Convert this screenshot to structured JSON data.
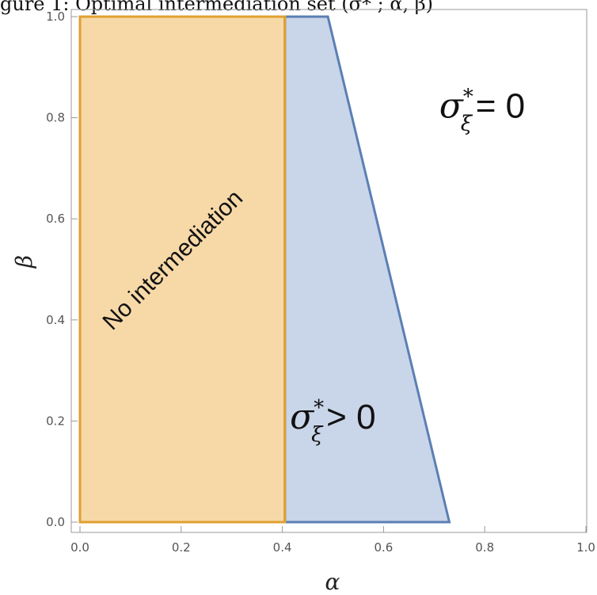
{
  "caption": "gure 1: Optimal intermediation set (σ* ; α, β)",
  "chart_data": {
    "type": "area",
    "xlabel": "α",
    "ylabel": "β",
    "xlim": [
      0,
      1
    ],
    "ylim": [
      0,
      1
    ],
    "x_ticks": [
      "0.0",
      "0.2",
      "0.4",
      "0.6",
      "0.8",
      "1.0"
    ],
    "y_ticks": [
      "0.0",
      "0.2",
      "0.4",
      "0.6",
      "0.8",
      "1.0"
    ],
    "x_tick_values": [
      0,
      0.2,
      0.4,
      0.6,
      0.8,
      1.0
    ],
    "y_tick_values": [
      0,
      0.2,
      0.4,
      0.6,
      0.8,
      1.0
    ],
    "grid": false,
    "regions": [
      {
        "label": "No intermediation",
        "fill": "#f7d9a8",
        "stroke": "#e0a030",
        "points": [
          [
            0,
            0
          ],
          [
            0,
            1
          ],
          [
            0.405,
            1
          ],
          [
            0.405,
            0
          ]
        ]
      },
      {
        "label": "σ*ξ > 0",
        "fill": "#c9d5e8",
        "stroke": "#5b7fb5",
        "points": [
          [
            0.405,
            0
          ],
          [
            0.405,
            1
          ],
          [
            0.49,
            1
          ],
          [
            0.73,
            0
          ]
        ]
      }
    ],
    "annotations": [
      {
        "text_main": "σ",
        "sup": "*",
        "sub": "ξ",
        "rest": " = 0",
        "at": [
          0.71,
          0.8
        ]
      },
      {
        "text_main": "σ",
        "sup": "*",
        "sub": "ξ",
        "rest": " > 0",
        "at": [
          0.415,
          0.185
        ]
      }
    ]
  }
}
